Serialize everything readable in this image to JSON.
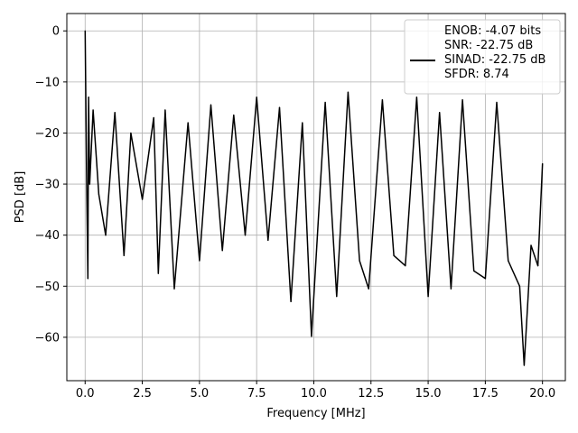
{
  "chart_data": {
    "type": "line",
    "title": "",
    "xlabel": "Frequency [MHz]",
    "ylabel": "PSD [dB]",
    "xlim": [
      -0.8,
      21.0
    ],
    "ylim": [
      -68.5,
      3.4
    ],
    "xticks": [
      0.0,
      2.5,
      5.0,
      7.5,
      10.0,
      12.5,
      15.0,
      17.5,
      20.0
    ],
    "xtick_labels": [
      "0.0",
      "2.5",
      "5.0",
      "7.5",
      "10.0",
      "12.5",
      "15.0",
      "17.5",
      "20.0"
    ],
    "yticks": [
      0,
      -10,
      -20,
      -30,
      -40,
      -50,
      -60
    ],
    "ytick_labels": [
      "0",
      "−10",
      "−20",
      "−30",
      "−40",
      "−50",
      "−60"
    ],
    "grid": true,
    "legend": {
      "placement": "upper right",
      "entries": [
        "ENOB: -4.07 bits",
        "SNR: -22.75 dB",
        "SINAD: -22.75 dB",
        "SFDR: 8.74"
      ]
    },
    "series": [
      {
        "color": "#000000",
        "x": [
          0.0,
          0.06,
          0.12,
          0.15,
          0.2,
          0.35,
          0.6,
          0.9,
          1.3,
          1.7,
          2.0,
          2.5,
          3.0,
          3.2,
          3.5,
          3.9,
          4.5,
          5.0,
          5.5,
          6.0,
          6.5,
          7.0,
          7.5,
          8.0,
          8.5,
          9.0,
          9.5,
          9.9,
          10.5,
          11.0,
          11.5,
          12.0,
          12.4,
          13.0,
          13.5,
          14.0,
          14.5,
          15.0,
          15.5,
          16.0,
          16.5,
          17.0,
          17.5,
          18.0,
          18.5,
          19.0,
          19.2,
          19.5,
          19.8,
          20.0
        ],
        "y": [
          0.0,
          -27.0,
          -48.5,
          -13.0,
          -30.0,
          -15.5,
          -32.0,
          -40.0,
          -16.0,
          -44.0,
          -20.0,
          -33.0,
          -17.0,
          -47.5,
          -15.5,
          -50.5,
          -18.0,
          -45.0,
          -14.5,
          -43.0,
          -16.5,
          -40.0,
          -13.0,
          -41.0,
          -15.0,
          -53.0,
          -18.0,
          -59.8,
          -14.0,
          -52.0,
          -12.0,
          -45.0,
          -50.5,
          -13.5,
          -44.0,
          -46.0,
          -13.0,
          -52.0,
          -16.0,
          -50.5,
          -13.5,
          -47.0,
          -48.5,
          -14.0,
          -45.0,
          -50.0,
          -65.5,
          -42.0,
          -46.0,
          -26.0
        ]
      }
    ]
  }
}
